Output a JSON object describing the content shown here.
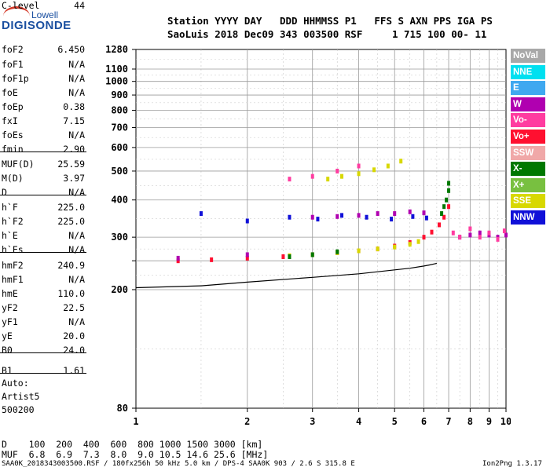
{
  "logo": {
    "top": "Lowell",
    "bottom": "DIGISONDE"
  },
  "header": {
    "line1": "Station YYYY DAY   DDD HHMMSS P1   FFS S AXN PPS IGA PS",
    "line2": "SaoLuis 2018 Dec09 343 003500 RSF     1 715 100 00- 11"
  },
  "params": [
    {
      "name": "foF2",
      "value": "6.450"
    },
    {
      "name": "foF1",
      "value": "N/A"
    },
    {
      "name": "foF1p",
      "value": "N/A"
    },
    {
      "name": "foE",
      "value": "N/A"
    },
    {
      "name": "foEp",
      "value": "0.38"
    },
    {
      "name": "fxI",
      "value": "7.15"
    },
    {
      "name": "foEs",
      "value": "N/A"
    },
    {
      "name": "fmin",
      "value": "2.90"
    },
    {
      "name": "MUF(D)",
      "value": "25.59"
    },
    {
      "name": "M(D)",
      "value": "3.97"
    },
    {
      "name": "D",
      "value": "N/A"
    },
    {
      "name": "h`F",
      "value": "225.0"
    },
    {
      "name": "h`F2",
      "value": "225.0"
    },
    {
      "name": "h`E",
      "value": "N/A"
    },
    {
      "name": "h`Es",
      "value": "N/A"
    },
    {
      "name": "hmF2",
      "value": "240.9"
    },
    {
      "name": "hmF1",
      "value": "N/A"
    },
    {
      "name": "hmE",
      "value": "110.0"
    },
    {
      "name": "yF2",
      "value": "22.5"
    },
    {
      "name": "yF1",
      "value": "N/A"
    },
    {
      "name": "yE",
      "value": "20.0"
    },
    {
      "name": "B0",
      "value": "24.0"
    },
    {
      "name": "B1",
      "value": "1.61"
    },
    {
      "name": "C-level",
      "value": "44"
    }
  ],
  "auto": {
    "line1": "Auto:",
    "line2": "Artist5",
    "line3": "500200"
  },
  "legend": [
    {
      "label": "NoVal",
      "color": "#a8a8a8"
    },
    {
      "label": "NNE",
      "color": "#00e0f0"
    },
    {
      "label": "E",
      "color": "#3fa8f0"
    },
    {
      "label": "W",
      "color": "#b000b0"
    },
    {
      "label": "Vo-",
      "color": "#ff3ca0"
    },
    {
      "label": "Vo+",
      "color": "#ff1030"
    },
    {
      "label": "SSW",
      "color": "#f0a8a8"
    },
    {
      "label": "X-",
      "color": "#007800"
    },
    {
      "label": "X+",
      "color": "#78c040"
    },
    {
      "label": "SSE",
      "color": "#d8d800"
    },
    {
      "label": "NNW",
      "color": "#1010d8"
    }
  ],
  "muf_table": {
    "d_row": "D    100  200  400  600  800 1000 1500 3000 [km]",
    "muf_row": "MUF  6.8  6.9  7.3  8.0  9.0 10.5 14.6 25.6 [MHz]"
  },
  "footer": {
    "left": "SAA0K_2018343003500.RSF / 180fx256h 50 kHz 5.0 km / DPS-4 SAA0K 903 / 2.6 S 315.8 E",
    "right": "Ion2Png 1.3.17"
  },
  "chart_data": {
    "type": "scatter",
    "xlabel": "",
    "ylabel": "",
    "x_scale": "log",
    "y_scale": "log",
    "xlim": [
      1,
      10
    ],
    "ylim": [
      80,
      1280
    ],
    "x_ticks": [
      1,
      2,
      3,
      4,
      5,
      6,
      7,
      8,
      9,
      10
    ],
    "y_ticks": [
      80,
      200,
      250,
      300,
      400,
      500,
      600,
      700,
      800,
      900,
      1000,
      1100,
      1280
    ],
    "y_tick_labels": [
      "80",
      "200",
      "",
      "300",
      "400",
      "500",
      "600",
      "700",
      "800",
      "900",
      "1000",
      "1100",
      "1280"
    ],
    "grid": true,
    "legend_position": "right",
    "profile_curve": {
      "x": [
        1.0,
        1.5,
        2.0,
        3.0,
        4.0,
        5.0,
        5.5,
        6.0,
        6.2,
        6.4,
        6.5
      ],
      "y": [
        203,
        206,
        212,
        220,
        226,
        233,
        236,
        240,
        242,
        244,
        245
      ]
    },
    "series": [
      {
        "name": "Vo+",
        "color": "#ff1030",
        "x": [
          1.3,
          1.6,
          2.0,
          2.5,
          3.0,
          3.5,
          4.0,
          4.5,
          5.0,
          5.5,
          6.0,
          6.3,
          6.6,
          6.8,
          7.0
        ],
        "y": [
          250,
          252,
          255,
          258,
          262,
          266,
          270,
          274,
          280,
          288,
          300,
          312,
          330,
          350,
          380
        ]
      },
      {
        "name": "SSE",
        "color": "#d8d800",
        "x": [
          2.6,
          3.0,
          3.5,
          4.0,
          4.5,
          5.0,
          5.5,
          5.8,
          3.3,
          3.6,
          4.0,
          4.4,
          4.8,
          5.2
        ],
        "y": [
          260,
          262,
          266,
          270,
          274,
          278,
          284,
          290,
          470,
          480,
          490,
          505,
          520,
          540
        ]
      },
      {
        "name": "W",
        "color": "#b000b0",
        "x": [
          1.3,
          2.0,
          3.0,
          3.5,
          4.0,
          4.5,
          5.0,
          5.5,
          6.0,
          7.5,
          8.0,
          8.5,
          9.0,
          9.5,
          10.0
        ],
        "y": [
          255,
          262,
          350,
          352,
          355,
          360,
          360,
          365,
          362,
          300,
          305,
          310,
          305,
          300,
          305
        ]
      },
      {
        "name": "Vo-",
        "color": "#ff3ca0",
        "x": [
          7.2,
          7.5,
          8.0,
          8.5,
          9.0,
          9.5,
          9.9,
          2.6,
          3.0,
          3.5,
          4.0
        ],
        "y": [
          310,
          300,
          320,
          300,
          310,
          295,
          315,
          470,
          480,
          500,
          520
        ]
      },
      {
        "name": "X-",
        "color": "#007800",
        "x": [
          2.6,
          3.0,
          3.5,
          6.7,
          6.8,
          6.9,
          7.0,
          7.0
        ],
        "y": [
          258,
          262,
          268,
          360,
          380,
          400,
          430,
          455
        ]
      },
      {
        "name": "NNW",
        "color": "#1010d8",
        "x": [
          1.5,
          2.0,
          2.6,
          3.1,
          3.6,
          4.2,
          4.9,
          5.6,
          6.1
        ],
        "y": [
          360,
          340,
          350,
          345,
          355,
          350,
          345,
          352,
          348
        ]
      }
    ]
  }
}
